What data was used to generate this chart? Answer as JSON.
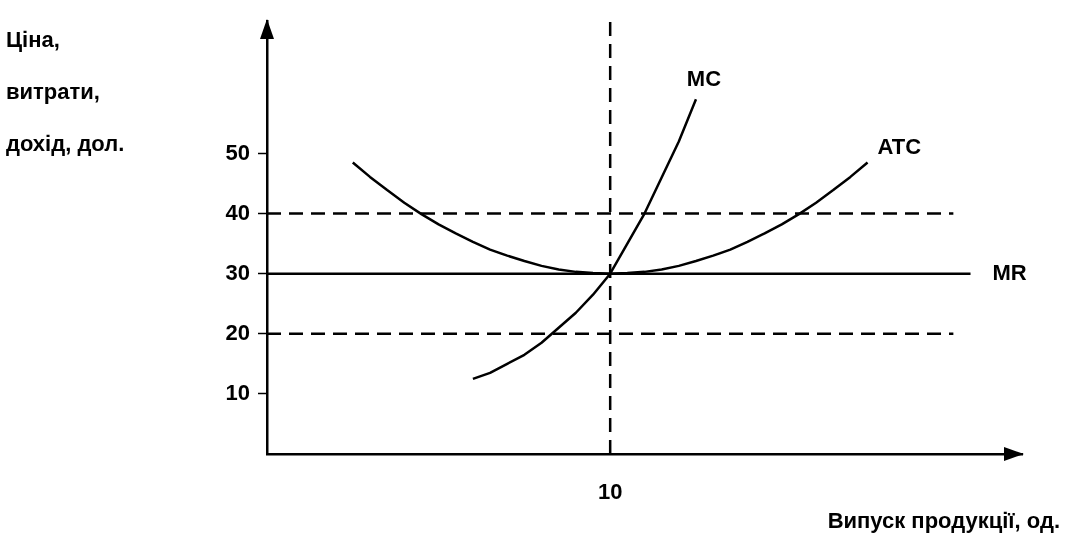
{
  "chart_data": {
    "type": "line",
    "xlabel": "Випуск продукції, од.",
    "ylabel": "Ціна,\nвитрати,\nдохід, дол.",
    "ylim": [
      0,
      72
    ],
    "yticks": [
      10,
      20,
      30,
      40,
      50
    ],
    "marker": "none",
    "categories": [
      null,
      null,
      null,
      null,
      null,
      null,
      null,
      null,
      null,
      null,
      null,
      null,
      null,
      null,
      null,
      null,
      null,
      null,
      null,
      null,
      "10",
      null,
      null,
      null,
      null,
      null,
      null,
      null,
      null,
      null,
      null,
      null,
      null,
      null,
      null,
      null,
      null,
      null,
      null,
      null,
      null,
      null,
      null,
      null,
      null
    ],
    "ref_lines": [
      {
        "axis": "x",
        "value": "10",
        "color": "#000000",
        "line_style": "dashed"
      }
    ],
    "series": [
      {
        "name": "ATC",
        "color": "#000000",
        "line_style": "solid",
        "values": [
          null,
          null,
          null,
          null,
          null,
          48.5,
          46.1,
          43.9,
          41.8,
          39.9,
          38.2,
          36.7,
          35.3,
          34,
          33,
          32.1,
          31.3,
          30.7,
          30.3,
          30.1,
          30,
          30.1,
          30.3,
          30.7,
          31.3,
          32.1,
          33,
          34,
          35.3,
          36.7,
          38.2,
          39.9,
          41.8,
          43.9,
          46.1,
          48.5,
          null,
          null,
          null,
          null,
          null,
          null,
          null,
          null,
          null
        ]
      },
      {
        "name": "MC",
        "color": "#000000",
        "line_style": "solid",
        "values": [
          null,
          null,
          null,
          null,
          null,
          null,
          null,
          null,
          null,
          null,
          null,
          null,
          12.5,
          13.5,
          15,
          16.5,
          18.5,
          21,
          23.5,
          26.5,
          30,
          35,
          40,
          46,
          52,
          59,
          null,
          null,
          null,
          null,
          null,
          null,
          null,
          null,
          null,
          null,
          null,
          null,
          null,
          null,
          null,
          null,
          null,
          null,
          null
        ]
      },
      {
        "name": "MR",
        "color": "#000000",
        "line_style": "solid",
        "values": [
          30,
          30,
          30,
          30,
          30,
          30,
          30,
          30,
          30,
          30,
          30,
          30,
          30,
          30,
          30,
          30,
          30,
          30,
          30,
          30,
          30,
          30,
          30,
          30,
          30,
          30,
          30,
          30,
          30,
          30,
          30,
          30,
          30,
          30,
          30,
          30,
          30,
          30,
          30,
          30,
          30,
          30,
          null,
          null,
          null
        ]
      },
      {
        "color": "#000000",
        "line_style": "dashed",
        "values": [
          40,
          40,
          40,
          40,
          40,
          40,
          40,
          40,
          40,
          40,
          40,
          40,
          40,
          40,
          40,
          40,
          40,
          40,
          40,
          40,
          40,
          40,
          40,
          40,
          40,
          40,
          40,
          40,
          40,
          40,
          40,
          40,
          40,
          40,
          40,
          40,
          40,
          40,
          40,
          40,
          40,
          null,
          null,
          null,
          null
        ]
      },
      {
        "color": "#000000",
        "line_style": "dashed",
        "values": [
          20,
          20,
          20,
          20,
          20,
          20,
          20,
          20,
          20,
          20,
          20,
          20,
          20,
          20,
          20,
          20,
          20,
          20,
          20,
          20,
          20,
          20,
          20,
          20,
          20,
          20,
          20,
          20,
          20,
          20,
          20,
          20,
          20,
          20,
          20,
          20,
          20,
          20,
          20,
          20,
          20,
          null,
          null,
          null,
          null
        ]
      }
    ]
  }
}
